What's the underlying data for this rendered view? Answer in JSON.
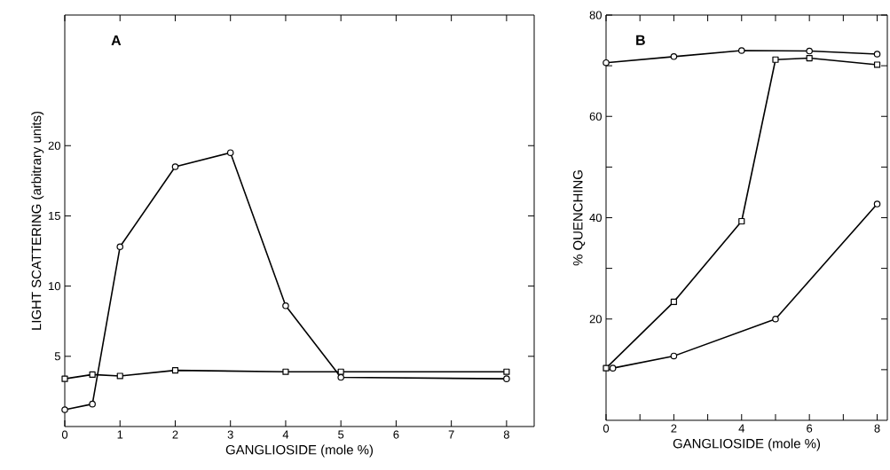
{
  "chart_data": [
    {
      "type": "line",
      "xlabel": "GANGLIOSIDE (mole %)",
      "ylabel": "LIGHT SCATTERING (arbitrary units)",
      "annotations": [
        "A"
      ],
      "xlim": [
        0,
        8.5
      ],
      "ylim": [
        0,
        29.3
      ],
      "xticks": [
        0,
        1,
        2,
        3,
        4,
        5,
        6,
        7,
        8
      ],
      "yticks": [
        5,
        10,
        15,
        20
      ],
      "line_style": "solid",
      "series": [
        {
          "color": "#000000",
          "marker": "circle",
          "x": [
            0,
            0.5,
            1,
            2,
            3,
            4,
            5,
            8
          ],
          "values": [
            1.2,
            1.6,
            12.8,
            18.5,
            19.5,
            8.6,
            3.5,
            3.4
          ]
        },
        {
          "color": "#000000",
          "marker": "square",
          "x": [
            0,
            0.5,
            1,
            2,
            4,
            5,
            8
          ],
          "values": [
            3.4,
            3.7,
            3.6,
            4.0,
            3.9,
            3.9,
            3.9
          ]
        }
      ]
    },
    {
      "type": "line",
      "xlabel": "GANGLIOSIDE (mole %)",
      "ylabel": "% QUENCHING",
      "annotations": [
        "B"
      ],
      "xlim": [
        0,
        8.3
      ],
      "ylim": [
        0,
        80
      ],
      "xticks": [
        0,
        {
          "value": 1,
          "label": null
        },
        2,
        {
          "value": 3,
          "label": null
        },
        4,
        {
          "value": 5,
          "label": null
        },
        6,
        {
          "value": 7,
          "label": null
        },
        8
      ],
      "yticks": [
        {
          "value": 10,
          "label": null
        },
        20,
        {
          "value": 30,
          "label": null
        },
        40,
        {
          "value": 50,
          "label": null
        },
        60,
        {
          "value": 70,
          "label": null
        },
        80
      ],
      "line_style": "solid",
      "series": [
        {
          "color": "#000000",
          "marker": "circle",
          "x": [
            0,
            2,
            4,
            6,
            8
          ],
          "values": [
            70.6,
            71.8,
            73.0,
            72.9,
            72.3
          ]
        },
        {
          "color": "#000000",
          "marker": "square",
          "x": [
            0,
            2,
            4,
            5,
            6,
            8
          ],
          "values": [
            10.3,
            23.4,
            39.3,
            71.2,
            71.5,
            70.2
          ]
        },
        {
          "color": "#000000",
          "marker": "circle",
          "x": [
            0.2,
            2,
            5,
            8
          ],
          "values": [
            10.3,
            12.7,
            20.0,
            42.7
          ]
        }
      ]
    }
  ]
}
